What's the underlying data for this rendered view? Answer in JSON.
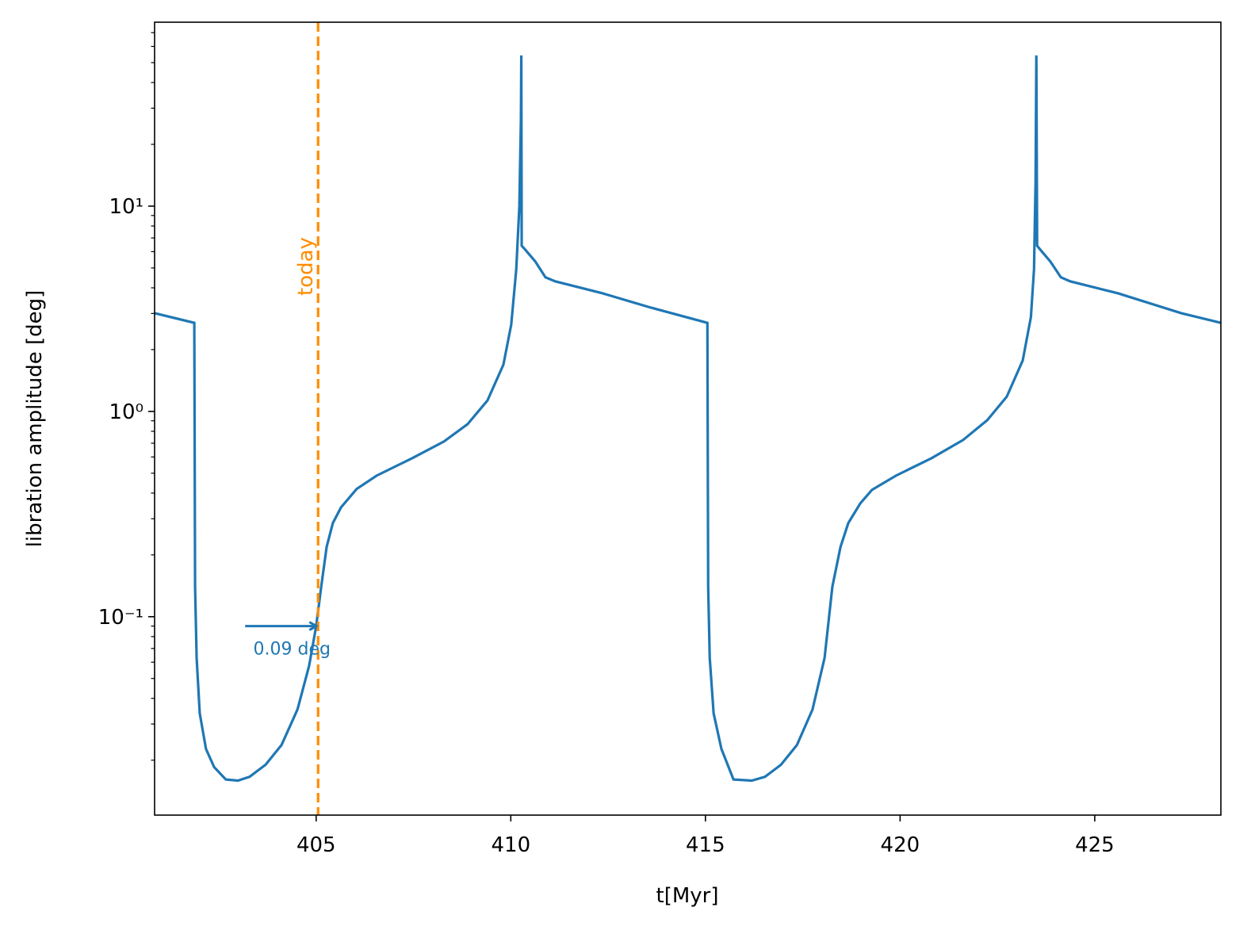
{
  "chart_data": {
    "type": "line",
    "xlabel": "t[Myr]",
    "ylabel": "libration amplitude [deg]",
    "xlim": [
      400.85,
      428.24
    ],
    "xticks": [
      405,
      410,
      415,
      420,
      425
    ],
    "ylim": [
      0.0108,
      78.7
    ],
    "yscale": "log",
    "yticks": [
      {
        "value": 0.1,
        "label": "10⁻¹"
      },
      {
        "value": 1,
        "label": "10⁰"
      },
      {
        "value": 10,
        "label": "10¹"
      }
    ],
    "yminorticks": [
      0.02,
      0.03,
      0.04,
      0.05,
      0.06,
      0.07,
      0.08,
      0.09,
      0.2,
      0.3,
      0.4,
      0.5,
      0.6,
      0.7,
      0.8,
      0.9,
      2,
      3,
      4,
      5,
      6,
      7,
      8,
      9,
      20,
      30,
      40,
      50,
      60,
      70
    ],
    "series": [
      {
        "color": "#1f77b4",
        "x": [
          400.85,
          401.87,
          401.89,
          401.93,
          402.01,
          402.17,
          402.38,
          402.68,
          402.99,
          403.29,
          403.7,
          404.11,
          404.52,
          404.82,
          405.0,
          405.13,
          405.27,
          405.43,
          405.64,
          406.04,
          406.55,
          407.47,
          408.28,
          408.89,
          409.4,
          409.81,
          410.01,
          410.14,
          410.22,
          410.26,
          410.27,
          410.28,
          410.37,
          410.63,
          410.89,
          411.14,
          412.36,
          413.58,
          415.05,
          415.07,
          415.11,
          415.21,
          415.41,
          415.72,
          416.19,
          416.53,
          416.94,
          417.35,
          417.75,
          418.06,
          418.26,
          418.47,
          418.67,
          418.98,
          419.28,
          419.89,
          420.81,
          421.62,
          422.24,
          422.74,
          423.15,
          423.36,
          423.44,
          423.48,
          423.5,
          423.52,
          423.6,
          423.86,
          424.13,
          424.37,
          425.6,
          427.22,
          428.24
        ],
        "values": [
          3.01,
          2.7,
          0.14,
          0.063,
          0.0338,
          0.0227,
          0.0185,
          0.0161,
          0.0159,
          0.0166,
          0.019,
          0.0237,
          0.0353,
          0.0577,
          0.0899,
          0.14,
          0.219,
          0.286,
          0.341,
          0.419,
          0.486,
          0.592,
          0.713,
          0.867,
          1.13,
          1.69,
          2.64,
          4.91,
          10,
          26.6,
          54.2,
          6.41,
          6.14,
          5.37,
          4.5,
          4.3,
          3.76,
          3.21,
          2.7,
          0.14,
          0.063,
          0.0338,
          0.0227,
          0.0161,
          0.0159,
          0.0166,
          0.019,
          0.0237,
          0.0353,
          0.063,
          0.14,
          0.219,
          0.286,
          0.357,
          0.415,
          0.486,
          0.592,
          0.726,
          0.907,
          1.18,
          1.77,
          2.88,
          4.91,
          13.1,
          54.2,
          6.41,
          6.14,
          5.37,
          4.5,
          4.3,
          3.76,
          3.01,
          2.7
        ]
      }
    ],
    "vline": {
      "x": 405.05,
      "label": "today",
      "color": "#ff8c00"
    },
    "annotation": {
      "text": "0.09 deg",
      "x": 405.05,
      "y": 0.09,
      "color": "#1f77b4"
    }
  }
}
